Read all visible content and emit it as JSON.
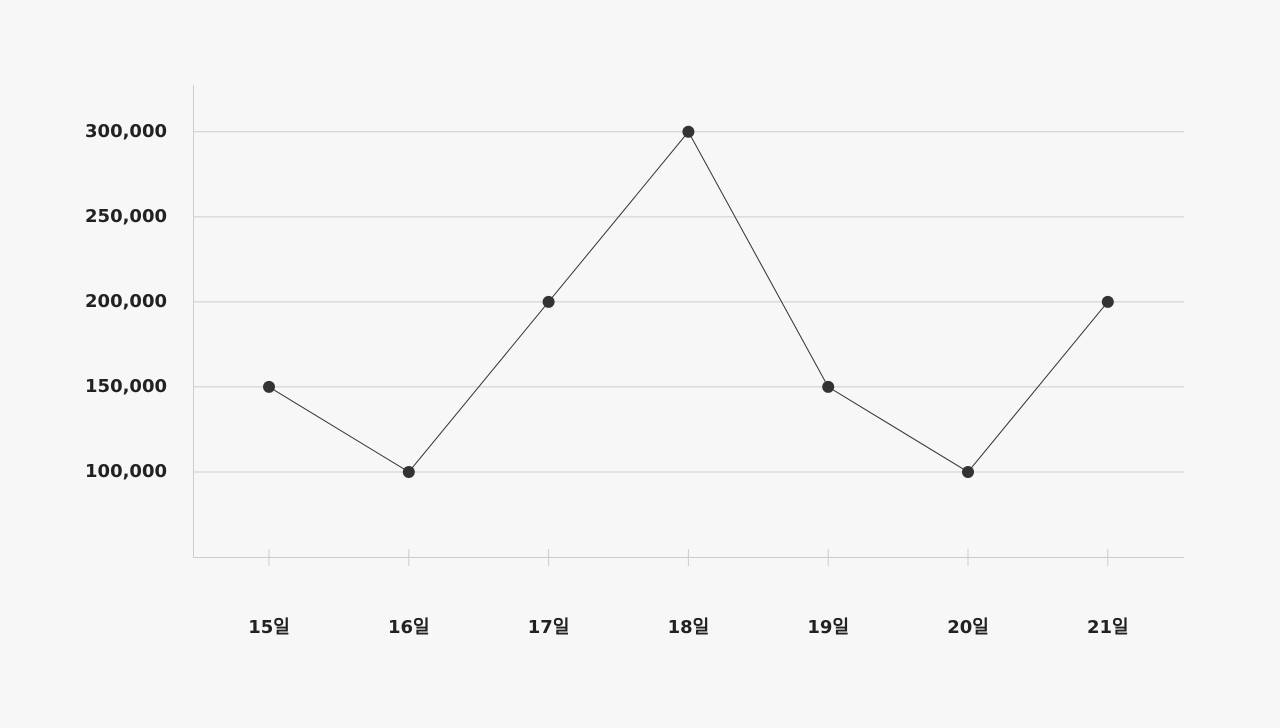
{
  "chart_data": {
    "type": "line",
    "categories": [
      "15일",
      "16일",
      "17일",
      "18일",
      "19일",
      "20일",
      "21일"
    ],
    "series": [
      {
        "color": "#333333",
        "values": [
          150000,
          100000,
          200000,
          300000,
          150000,
          100000,
          200000
        ]
      }
    ],
    "ylim": [
      50000,
      327500
    ],
    "yticks": [
      {
        "value": 100000,
        "label": "100,000"
      },
      {
        "value": 150000,
        "label": "150,000"
      },
      {
        "value": 200000,
        "label": "200,000"
      },
      {
        "value": 250000,
        "label": "250,000"
      },
      {
        "value": 300000,
        "label": "300,000"
      }
    ],
    "grid": true
  }
}
